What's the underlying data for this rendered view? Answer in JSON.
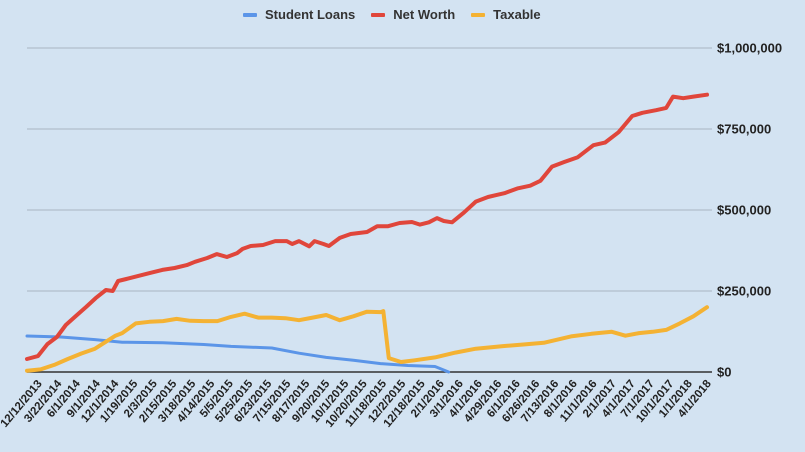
{
  "chart_data": {
    "type": "line",
    "title": "",
    "xlabel": "",
    "ylabel": "",
    "ylim": [
      0,
      1000000
    ],
    "grid": true,
    "legend_position": "top",
    "y_axis_position": "right",
    "y_ticks": [
      {
        "value": 0,
        "label": "$0"
      },
      {
        "value": 250000,
        "label": "$250,000"
      },
      {
        "value": 500000,
        "label": "$500,000"
      },
      {
        "value": 750000,
        "label": "$750,000"
      },
      {
        "value": 1000000,
        "label": "$1,000,000"
      }
    ],
    "categories": [
      "12/12/2013",
      "3/22/2014",
      "6/1/2014",
      "9/1/2014",
      "12/1/2014",
      "1/19/2015",
      "2/3/2015",
      "2/15/2015",
      "3/18/2015",
      "4/14/2015",
      "5/5/2015",
      "5/25/2015",
      "6/23/2015",
      "7/15/2015",
      "8/17/2015",
      "9/20/2015",
      "10/1/2015",
      "10/20/2015",
      "11/18/2015",
      "12/2/2015",
      "12/18/2015",
      "2/1/2016",
      "3/1/2016",
      "4/1/2016",
      "4/29/2016",
      "6/1/2016",
      "6/26/2016",
      "7/13/2016",
      "8/1/2016",
      "11/1/2016",
      "2/1/2017",
      "4/1/2017",
      "7/1/2017",
      "10/1/2017",
      "1/1/2018",
      "4/1/2018"
    ],
    "series": [
      {
        "name": "Student Loans",
        "color": "#5b95e8",
        "x_frac": [
          0.0,
          0.05,
          0.1,
          0.14,
          0.2,
          0.26,
          0.3,
          0.36,
          0.4,
          0.44,
          0.48,
          0.52,
          0.56,
          0.6,
          0.62
        ],
        "values": [
          111000,
          108000,
          100000,
          92000,
          90000,
          85000,
          79000,
          74000,
          58000,
          45000,
          36000,
          26000,
          20000,
          17000,
          0
        ]
      },
      {
        "name": "Net Worth",
        "color": "#e0463b",
        "x_frac": [
          0.0,
          0.016,
          0.03,
          0.044,
          0.057,
          0.072,
          0.087,
          0.101,
          0.116,
          0.126,
          0.134,
          0.146,
          0.163,
          0.181,
          0.199,
          0.217,
          0.235,
          0.247,
          0.265,
          0.279,
          0.294,
          0.309,
          0.317,
          0.329,
          0.347,
          0.365,
          0.382,
          0.39,
          0.4,
          0.415,
          0.423,
          0.436,
          0.444,
          0.46,
          0.476,
          0.5,
          0.515,
          0.531,
          0.548,
          0.566,
          0.578,
          0.591,
          0.603,
          0.613,
          0.625,
          0.643,
          0.66,
          0.678,
          0.69,
          0.702,
          0.722,
          0.74,
          0.755,
          0.772,
          0.79,
          0.81,
          0.833,
          0.85,
          0.87,
          0.89,
          0.905,
          0.925,
          0.94,
          0.95,
          0.965,
          0.98,
          1.0
        ],
        "values": [
          40000,
          49000,
          86000,
          108000,
          145000,
          173000,
          201000,
          228000,
          253000,
          250000,
          281000,
          287000,
          296000,
          306000,
          315000,
          321000,
          330000,
          340000,
          352000,
          364000,
          355000,
          367000,
          380000,
          389000,
          392000,
          404000,
          404000,
          395000,
          404000,
          388000,
          404000,
          395000,
          389000,
          414000,
          426000,
          432000,
          450000,
          450000,
          460000,
          463000,
          455000,
          462000,
          475000,
          466000,
          462000,
          493000,
          526000,
          540000,
          546000,
          552000,
          567000,
          575000,
          590000,
          634000,
          648000,
          663000,
          700000,
          708000,
          740000,
          790000,
          800000,
          808000,
          815000,
          850000,
          845000,
          850000,
          856000
        ]
      },
      {
        "name": "Taxable",
        "color": "#f4b233",
        "x_frac": [
          0.0,
          0.02,
          0.04,
          0.06,
          0.08,
          0.1,
          0.115,
          0.13,
          0.14,
          0.16,
          0.18,
          0.2,
          0.22,
          0.24,
          0.26,
          0.28,
          0.3,
          0.32,
          0.34,
          0.36,
          0.38,
          0.4,
          0.42,
          0.44,
          0.46,
          0.48,
          0.5,
          0.52,
          0.524,
          0.532,
          0.55,
          0.57,
          0.6,
          0.63,
          0.66,
          0.7,
          0.73,
          0.76,
          0.8,
          0.83,
          0.86,
          0.88,
          0.9,
          0.92,
          0.94,
          0.96,
          0.98,
          1.0
        ],
        "values": [
          4000,
          8000,
          22000,
          40000,
          57000,
          72000,
          92000,
          112000,
          120000,
          150000,
          155000,
          157000,
          164000,
          158000,
          157000,
          157000,
          170000,
          180000,
          168000,
          168000,
          166000,
          160000,
          168000,
          176000,
          160000,
          172000,
          186000,
          185000,
          188000,
          43000,
          31000,
          36000,
          45000,
          60000,
          72000,
          80000,
          85000,
          90000,
          110000,
          118000,
          124000,
          112000,
          120000,
          124000,
          130000,
          150000,
          172000,
          200000
        ]
      }
    ]
  },
  "legend": {
    "items": [
      {
        "label": "Student Loans",
        "color": "#5b95e8"
      },
      {
        "label": "Net Worth",
        "color": "#e0463b"
      },
      {
        "label": "Taxable",
        "color": "#f4b233"
      }
    ]
  },
  "colors": {
    "background": "#d3e3f2",
    "gridline": "#a9b6c3",
    "axis": "#333333"
  }
}
